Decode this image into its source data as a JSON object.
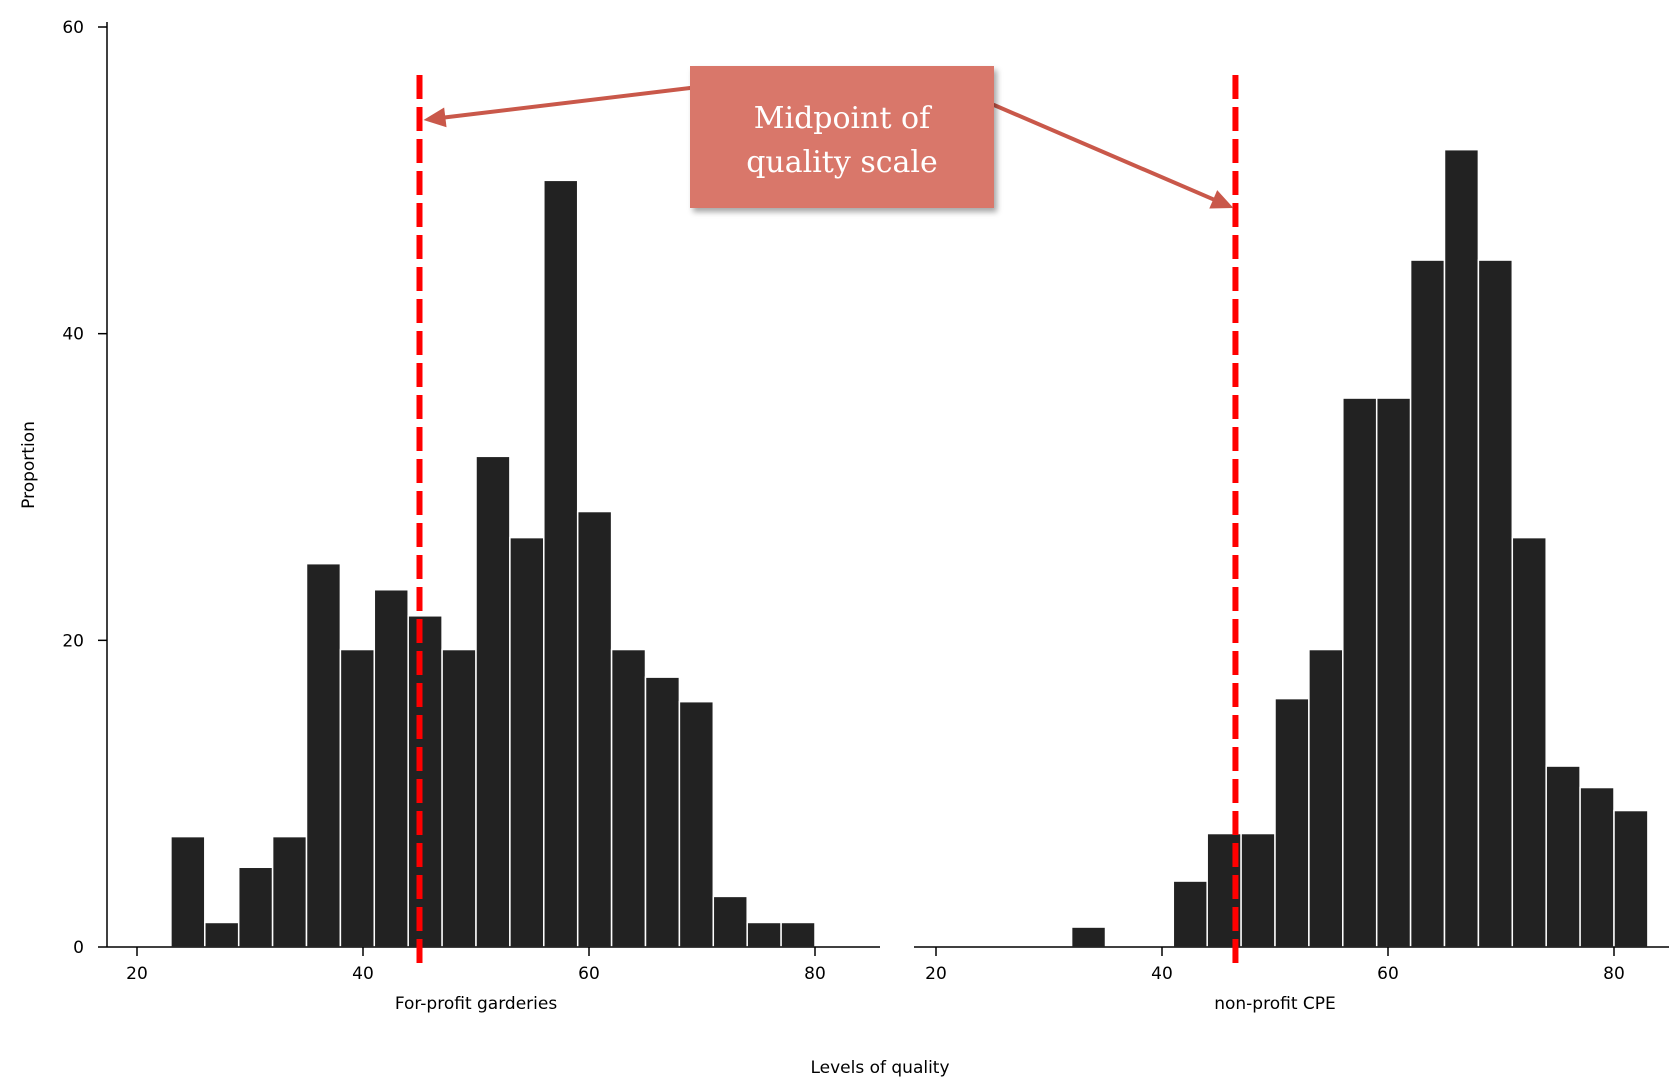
{
  "chart_data": {
    "type": "bar",
    "ylabel": "Proportion",
    "xlabel": "Levels of quality",
    "ylim": [
      0,
      60
    ],
    "yticks": [
      0,
      20,
      40,
      60
    ],
    "xlim": [
      20,
      80
    ],
    "xticks": [
      20,
      40,
      60,
      80
    ],
    "bar_color": "#222222",
    "panels": [
      {
        "name": "For-profit garderies",
        "bin_width": 3,
        "bins": [
          {
            "start": 23,
            "value": 7.2
          },
          {
            "start": 26,
            "value": 1.6
          },
          {
            "start": 29,
            "value": 5.2
          },
          {
            "start": 32,
            "value": 7.2
          },
          {
            "start": 35,
            "value": 25
          },
          {
            "start": 38,
            "value": 19.4
          },
          {
            "start": 41,
            "value": 23.3
          },
          {
            "start": 44,
            "value": 21.6
          },
          {
            "start": 47,
            "value": 19.4
          },
          {
            "start": 50,
            "value": 32
          },
          {
            "start": 53,
            "value": 26.7
          },
          {
            "start": 56,
            "value": 50
          },
          {
            "start": 59,
            "value": 28.4
          },
          {
            "start": 62,
            "value": 19.4
          },
          {
            "start": 65,
            "value": 17.6
          },
          {
            "start": 68,
            "value": 16
          },
          {
            "start": 71,
            "value": 3.3
          },
          {
            "start": 74,
            "value": 1.6
          },
          {
            "start": 77,
            "value": 1.6
          }
        ],
        "midpoint": 45
      },
      {
        "name": "non-profit CPE",
        "bin_width": 3,
        "bins": [
          {
            "start": 32,
            "value": 1.3
          },
          {
            "start": 41,
            "value": 4.3
          },
          {
            "start": 44,
            "value": 7.4
          },
          {
            "start": 47,
            "value": 7.4
          },
          {
            "start": 50,
            "value": 16.2
          },
          {
            "start": 53,
            "value": 19.4
          },
          {
            "start": 56,
            "value": 35.8
          },
          {
            "start": 59,
            "value": 35.8
          },
          {
            "start": 62,
            "value": 44.8
          },
          {
            "start": 65,
            "value": 52
          },
          {
            "start": 68,
            "value": 44.8
          },
          {
            "start": 71,
            "value": 26.7
          },
          {
            "start": 74,
            "value": 11.8
          },
          {
            "start": 77,
            "value": 10.4
          },
          {
            "start": 80,
            "value": 8.9
          }
        ],
        "midpoint": 46.5
      }
    ],
    "midpoint_line_color": "#ff0000",
    "callout": {
      "line1": "Midpoint of",
      "line2": "quality scale",
      "fill": "#d9776a",
      "arrow_color": "#c9584a",
      "target_value": 54
    }
  }
}
